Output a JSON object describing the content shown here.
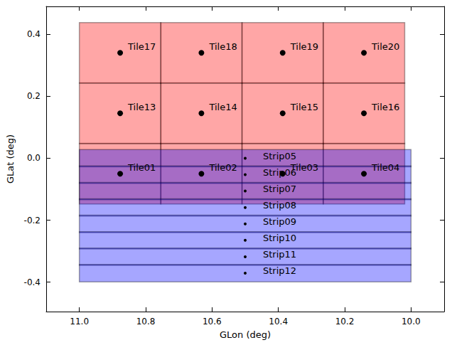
{
  "chart_data": {
    "type": "footprint",
    "x_label": "GLon (deg)",
    "y_label": "GLat (deg)",
    "xlim": [
      11.1,
      9.9
    ],
    "ylim": [
      -0.495,
      0.49
    ],
    "xticks": [
      {
        "value": 11.0,
        "label": "11.0"
      },
      10.8,
      10.6,
      10.4,
      10.2,
      {
        "value": 10.0,
        "label": "10.0"
      }
    ],
    "yticks": [
      -0.4,
      -0.2,
      {
        "value": 0,
        "label": "0.0"
      },
      0.2,
      0.4
    ],
    "grid": false,
    "marker": "circle",
    "series": [
      {
        "type": "rect",
        "color": "#ff0000",
        "items": [
          {
            "label": "Tile01",
            "x": 10.877,
            "y": -0.05,
            "xrange": [
              11.0,
              10.754
            ],
            "yrange": [
              -0.148,
              0.048
            ]
          },
          {
            "label": "Tile02",
            "x": 10.632,
            "y": -0.05,
            "xrange": [
              10.755,
              10.509
            ],
            "yrange": [
              -0.148,
              0.048
            ]
          },
          {
            "label": "Tile03",
            "x": 10.387,
            "y": -0.05,
            "xrange": [
              10.51,
              10.264
            ],
            "yrange": [
              -0.148,
              0.048
            ]
          },
          {
            "label": "Tile04",
            "x": 10.142,
            "y": -0.05,
            "xrange": [
              10.265,
              10.019
            ],
            "yrange": [
              -0.148,
              0.048
            ]
          },
          {
            "label": "Tile13",
            "x": 10.877,
            "y": 0.145,
            "xrange": [
              11.0,
              10.754
            ],
            "yrange": [
              0.047,
              0.243
            ]
          },
          {
            "label": "Tile14",
            "x": 10.632,
            "y": 0.145,
            "xrange": [
              10.755,
              10.509
            ],
            "yrange": [
              0.047,
              0.243
            ]
          },
          {
            "label": "Tile15",
            "x": 10.387,
            "y": 0.145,
            "xrange": [
              10.51,
              10.264
            ],
            "yrange": [
              0.047,
              0.243
            ]
          },
          {
            "label": "Tile16",
            "x": 10.142,
            "y": 0.145,
            "xrange": [
              10.265,
              10.019
            ],
            "yrange": [
              0.047,
              0.243
            ]
          },
          {
            "label": "Tile17",
            "x": 10.877,
            "y": 0.34,
            "xrange": [
              11.0,
              10.754
            ],
            "yrange": [
              0.242,
              0.438
            ]
          },
          {
            "label": "Tile18",
            "x": 10.632,
            "y": 0.34,
            "xrange": [
              10.755,
              10.509
            ],
            "yrange": [
              0.242,
              0.438
            ]
          },
          {
            "label": "Tile19",
            "x": 10.387,
            "y": 0.34,
            "xrange": [
              10.51,
              10.264
            ],
            "yrange": [
              0.242,
              0.438
            ]
          },
          {
            "label": "Tile20",
            "x": 10.142,
            "y": 0.34,
            "xrange": [
              10.265,
              10.019
            ],
            "yrange": [
              0.242,
              0.438
            ]
          }
        ]
      },
      {
        "type": "rect",
        "color": "#0000ff",
        "items": [
          {
            "label": "Strip05",
            "x": 10.5,
            "y": 0.0,
            "xrange": [
              11.0,
              10.0
            ],
            "yrange": [
              -0.028,
              0.028
            ]
          },
          {
            "label": "Strip06",
            "x": 10.5,
            "y": -0.053,
            "xrange": [
              11.0,
              10.0
            ],
            "yrange": [
              -0.081,
              -0.025
            ]
          },
          {
            "label": "Strip07",
            "x": 10.5,
            "y": -0.106,
            "xrange": [
              11.0,
              10.0
            ],
            "yrange": [
              -0.134,
              -0.078
            ]
          },
          {
            "label": "Strip08",
            "x": 10.5,
            "y": -0.159,
            "xrange": [
              11.0,
              10.0
            ],
            "yrange": [
              -0.187,
              -0.131
            ]
          },
          {
            "label": "Strip09",
            "x": 10.5,
            "y": -0.212,
            "xrange": [
              11.0,
              10.0
            ],
            "yrange": [
              -0.24,
              -0.184
            ]
          },
          {
            "label": "Strip10",
            "x": 10.5,
            "y": -0.265,
            "xrange": [
              11.0,
              10.0
            ],
            "yrange": [
              -0.293,
              -0.237
            ]
          },
          {
            "label": "Strip11",
            "x": 10.5,
            "y": -0.318,
            "xrange": [
              11.0,
              10.0
            ],
            "yrange": [
              -0.346,
              -0.29
            ]
          },
          {
            "label": "Strip12",
            "x": 10.5,
            "y": -0.371,
            "xrange": [
              11.0,
              10.0
            ],
            "yrange": [
              -0.399,
              -0.343
            ]
          }
        ]
      }
    ]
  }
}
